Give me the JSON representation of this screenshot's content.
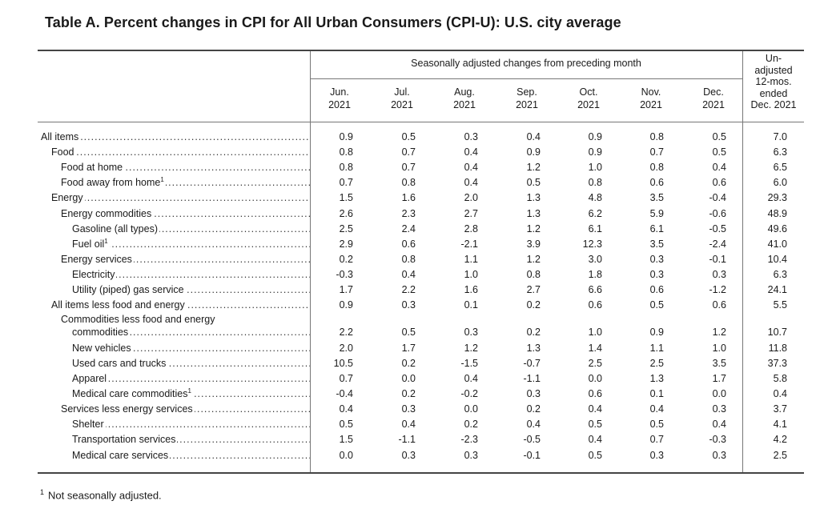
{
  "title": "Table A. Percent changes in CPI for All Urban Consumers (CPI-U): U.S. city average",
  "header": {
    "seasonal_label": "Seasonally adjusted changes from preceding month",
    "columns": [
      {
        "month": "Jun.",
        "year": "2021"
      },
      {
        "month": "Jul.",
        "year": "2021"
      },
      {
        "month": "Aug.",
        "year": "2021"
      },
      {
        "month": "Sep.",
        "year": "2021"
      },
      {
        "month": "Oct.",
        "year": "2021"
      },
      {
        "month": "Nov.",
        "year": "2021"
      },
      {
        "month": "Dec.",
        "year": "2021"
      }
    ],
    "unadjusted_lines": [
      "Un-",
      "adjusted",
      "12-mos.",
      "ended",
      "Dec. 2021"
    ]
  },
  "rows": [
    {
      "label": "All items",
      "indent": 0,
      "values": [
        "0.9",
        "0.5",
        "0.3",
        "0.4",
        "0.9",
        "0.8",
        "0.5",
        "7.0"
      ]
    },
    {
      "label": "Food",
      "indent": 1,
      "values": [
        "0.8",
        "0.7",
        "0.4",
        "0.9",
        "0.9",
        "0.7",
        "0.5",
        "6.3"
      ]
    },
    {
      "label": "Food at home",
      "indent": 2,
      "values": [
        "0.8",
        "0.7",
        "0.4",
        "1.2",
        "1.0",
        "0.8",
        "0.4",
        "6.5"
      ]
    },
    {
      "label": "Food away from home",
      "footnote": "1",
      "indent": 2,
      "values": [
        "0.7",
        "0.8",
        "0.4",
        "0.5",
        "0.8",
        "0.6",
        "0.6",
        "6.0"
      ]
    },
    {
      "label": "Energy",
      "indent": 1,
      "values": [
        "1.5",
        "1.6",
        "2.0",
        "1.3",
        "4.8",
        "3.5",
        "-0.4",
        "29.3"
      ]
    },
    {
      "label": "Energy commodities",
      "indent": 2,
      "values": [
        "2.6",
        "2.3",
        "2.7",
        "1.3",
        "6.2",
        "5.9",
        "-0.6",
        "48.9"
      ]
    },
    {
      "label": "Gasoline (all types)",
      "indent": 3,
      "values": [
        "2.5",
        "2.4",
        "2.8",
        "1.2",
        "6.1",
        "6.1",
        "-0.5",
        "49.6"
      ]
    },
    {
      "label": "Fuel oil",
      "footnote": "1",
      "indent": 3,
      "values": [
        "2.9",
        "0.6",
        "-2.1",
        "3.9",
        "12.3",
        "3.5",
        "-2.4",
        "41.0"
      ]
    },
    {
      "label": "Energy services",
      "indent": 2,
      "values": [
        "0.2",
        "0.8",
        "1.1",
        "1.2",
        "3.0",
        "0.3",
        "-0.1",
        "10.4"
      ]
    },
    {
      "label": "Electricity",
      "indent": 3,
      "values": [
        "-0.3",
        "0.4",
        "1.0",
        "0.8",
        "1.8",
        "0.3",
        "0.3",
        "6.3"
      ]
    },
    {
      "label": "Utility (piped) gas service",
      "indent": 3,
      "values": [
        "1.7",
        "2.2",
        "1.6",
        "2.7",
        "6.6",
        "0.6",
        "-1.2",
        "24.1"
      ]
    },
    {
      "label": "All items less food and energy",
      "indent": 1,
      "values": [
        "0.9",
        "0.3",
        "0.1",
        "0.2",
        "0.6",
        "0.5",
        "0.6",
        "5.5"
      ]
    },
    {
      "label_line1": "Commodities less food and energy",
      "label": "commodities",
      "indent": 2,
      "wrap": true,
      "values": [
        "2.2",
        "0.5",
        "0.3",
        "0.2",
        "1.0",
        "0.9",
        "1.2",
        "10.7"
      ]
    },
    {
      "label": "New vehicles",
      "indent": 3,
      "values": [
        "2.0",
        "1.7",
        "1.2",
        "1.3",
        "1.4",
        "1.1",
        "1.0",
        "11.8"
      ]
    },
    {
      "label": "Used cars and trucks",
      "indent": 3,
      "values": [
        "10.5",
        "0.2",
        "-1.5",
        "-0.7",
        "2.5",
        "2.5",
        "3.5",
        "37.3"
      ]
    },
    {
      "label": "Apparel",
      "indent": 3,
      "values": [
        "0.7",
        "0.0",
        "0.4",
        "-1.1",
        "0.0",
        "1.3",
        "1.7",
        "5.8"
      ]
    },
    {
      "label": "Medical care commodities",
      "footnote": "1",
      "indent": 3,
      "values": [
        "-0.4",
        "0.2",
        "-0.2",
        "0.3",
        "0.6",
        "0.1",
        "0.0",
        "0.4"
      ]
    },
    {
      "label": "Services less energy services",
      "indent": 2,
      "values": [
        "0.4",
        "0.3",
        "0.0",
        "0.2",
        "0.4",
        "0.4",
        "0.3",
        "3.7"
      ]
    },
    {
      "label": "Shelter",
      "indent": 3,
      "values": [
        "0.5",
        "0.4",
        "0.2",
        "0.4",
        "0.5",
        "0.5",
        "0.4",
        "4.1"
      ]
    },
    {
      "label": "Transportation services",
      "indent": 3,
      "values": [
        "1.5",
        "-1.1",
        "-2.3",
        "-0.5",
        "0.4",
        "0.7",
        "-0.3",
        "4.2"
      ]
    },
    {
      "label": "Medical care services",
      "indent": 3,
      "values": [
        "0.0",
        "0.3",
        "0.3",
        "-0.1",
        "0.5",
        "0.3",
        "0.3",
        "2.5"
      ]
    }
  ],
  "footnote": {
    "marker": "1",
    "text": "Not seasonally adjusted."
  }
}
